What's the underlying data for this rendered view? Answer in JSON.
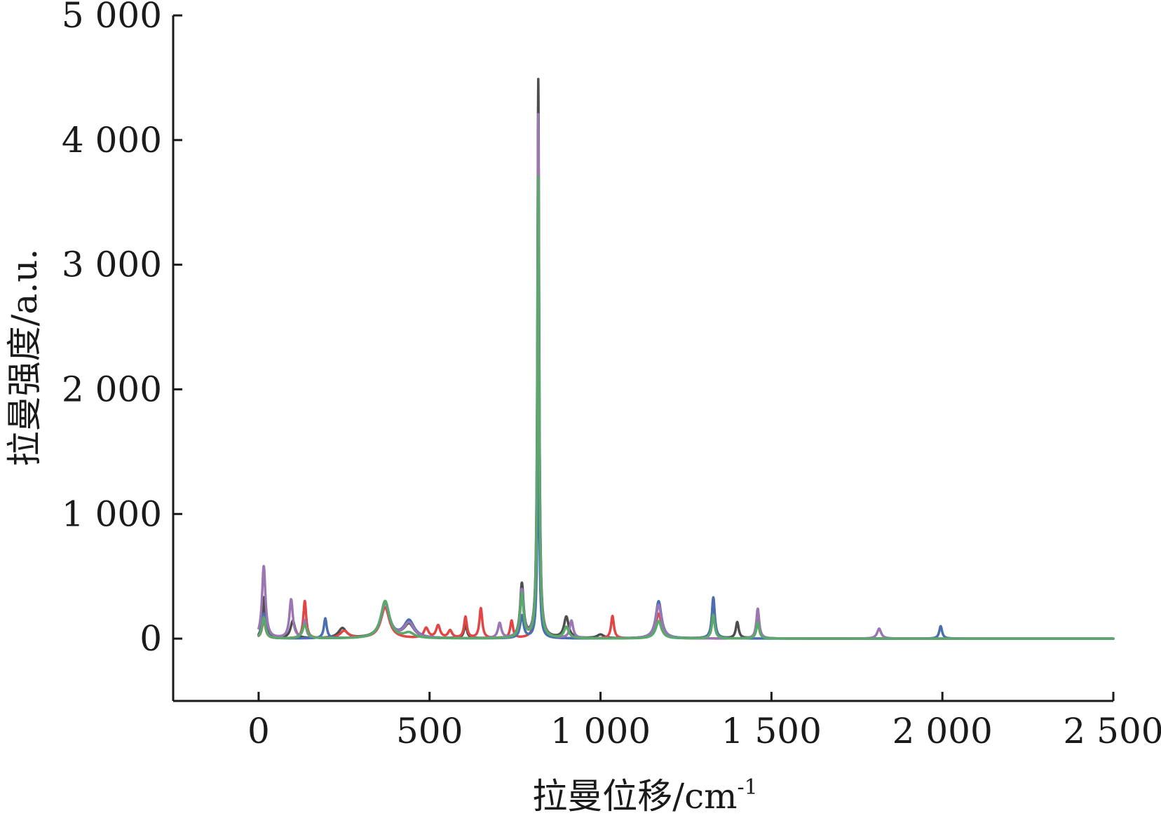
{
  "chart_data": {
    "type": "line",
    "xlabel": "拉曼位移/cm",
    "xlabel_sup": "-1",
    "ylabel": "拉曼强度/a.u.",
    "xlim": [
      -250,
      2500
    ],
    "ylim": [
      -500,
      5000
    ],
    "xticks": [
      0,
      500,
      1000,
      1500,
      2000,
      2500
    ],
    "xtick_labels": [
      "0",
      "500",
      "1 000",
      "1 500",
      "2 000",
      "2 500"
    ],
    "yticks": [
      0,
      1000,
      2000,
      3000,
      4000,
      5000
    ],
    "ytick_labels": [
      "0",
      "1 000",
      "2 000",
      "3 000",
      "4 000",
      "5 000"
    ],
    "x_range": [
      0,
      2500
    ],
    "series": [
      {
        "color": "#4d4d4d",
        "peaks": [
          [
            15,
            330,
            5
          ],
          [
            100,
            140,
            8
          ],
          [
            245,
            80,
            14
          ],
          [
            370,
            290,
            15
          ],
          [
            440,
            110,
            18
          ],
          [
            605,
            110,
            5
          ],
          [
            770,
            430,
            6
          ],
          [
            818,
            4480,
            3
          ],
          [
            900,
            170,
            8
          ],
          [
            1000,
            30,
            12
          ],
          [
            1170,
            280,
            10
          ],
          [
            1330,
            320,
            5
          ],
          [
            1400,
            130,
            5
          ],
          [
            1460,
            170,
            5
          ]
        ]
      },
      {
        "color": "#e04646",
        "peaks": [
          [
            15,
            150,
            6
          ],
          [
            135,
            300,
            5
          ],
          [
            250,
            60,
            14
          ],
          [
            370,
            250,
            15
          ],
          [
            490,
            80,
            8
          ],
          [
            525,
            100,
            7
          ],
          [
            560,
            60,
            7
          ],
          [
            605,
            170,
            5
          ],
          [
            650,
            240,
            5
          ],
          [
            740,
            140,
            5
          ],
          [
            818,
            3000,
            3
          ],
          [
            1035,
            180,
            5
          ],
          [
            1170,
            200,
            10
          ],
          [
            1460,
            200,
            5
          ]
        ]
      },
      {
        "color": "#4a6fb0",
        "peaks": [
          [
            15,
            200,
            6
          ],
          [
            195,
            160,
            5
          ],
          [
            370,
            280,
            15
          ],
          [
            440,
            140,
            18
          ],
          [
            770,
            180,
            6
          ],
          [
            818,
            2000,
            3
          ],
          [
            1170,
            300,
            10
          ],
          [
            1330,
            330,
            5
          ],
          [
            1995,
            100,
            5
          ]
        ]
      },
      {
        "color": "#9a76b2",
        "peaks": [
          [
            15,
            580,
            6
          ],
          [
            95,
            310,
            6
          ],
          [
            135,
            140,
            5
          ],
          [
            370,
            280,
            15
          ],
          [
            440,
            120,
            18
          ],
          [
            705,
            120,
            6
          ],
          [
            770,
            380,
            6
          ],
          [
            818,
            4200,
            3
          ],
          [
            915,
            140,
            6
          ],
          [
            1170,
            270,
            10
          ],
          [
            1460,
            240,
            5
          ],
          [
            1815,
            80,
            7
          ]
        ]
      },
      {
        "color": "#5ba86c",
        "peaks": [
          [
            15,
            170,
            6
          ],
          [
            135,
            110,
            8
          ],
          [
            370,
            300,
            15
          ],
          [
            440,
            40,
            18
          ],
          [
            770,
            350,
            6
          ],
          [
            818,
            3700,
            3
          ],
          [
            900,
            90,
            8
          ],
          [
            1170,
            140,
            10
          ],
          [
            1330,
            190,
            5
          ],
          [
            1460,
            130,
            5
          ]
        ]
      }
    ]
  }
}
